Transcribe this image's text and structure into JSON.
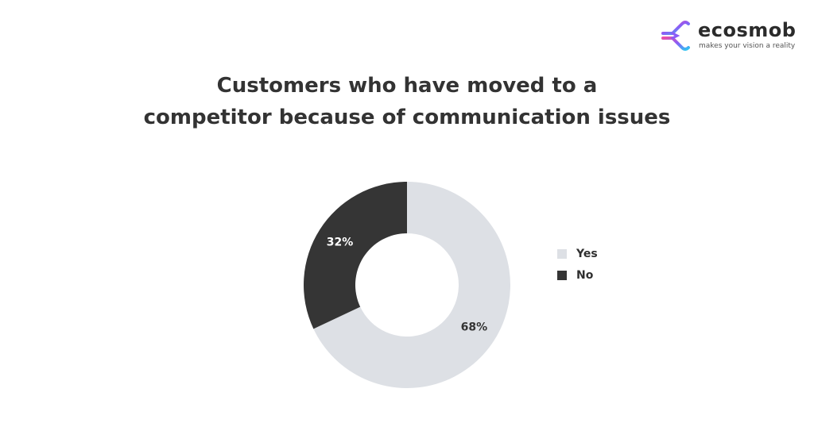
{
  "logo": {
    "name": "ecosmob",
    "tagline": "makes your vision a reality",
    "icon": "ecosmob-logo-mark",
    "colors": [
      "#e94fa8",
      "#8b5cf6",
      "#2ec4f1"
    ]
  },
  "chart_data": {
    "type": "pie",
    "variant": "donut",
    "title_lines": [
      "Customers who have moved to a",
      "competitor because of communication issues"
    ],
    "title": "Customers who have moved to a competitor because of communication issues",
    "categories": [
      "Yes",
      "No"
    ],
    "values": [
      68,
      32
    ],
    "labels": [
      "68%",
      "32%"
    ],
    "colors": [
      "#dde0e5",
      "#353535"
    ],
    "label_colors": [
      "#333333",
      "#ffffff"
    ],
    "legend_position": "right",
    "start_angle": "top, clockwise"
  }
}
